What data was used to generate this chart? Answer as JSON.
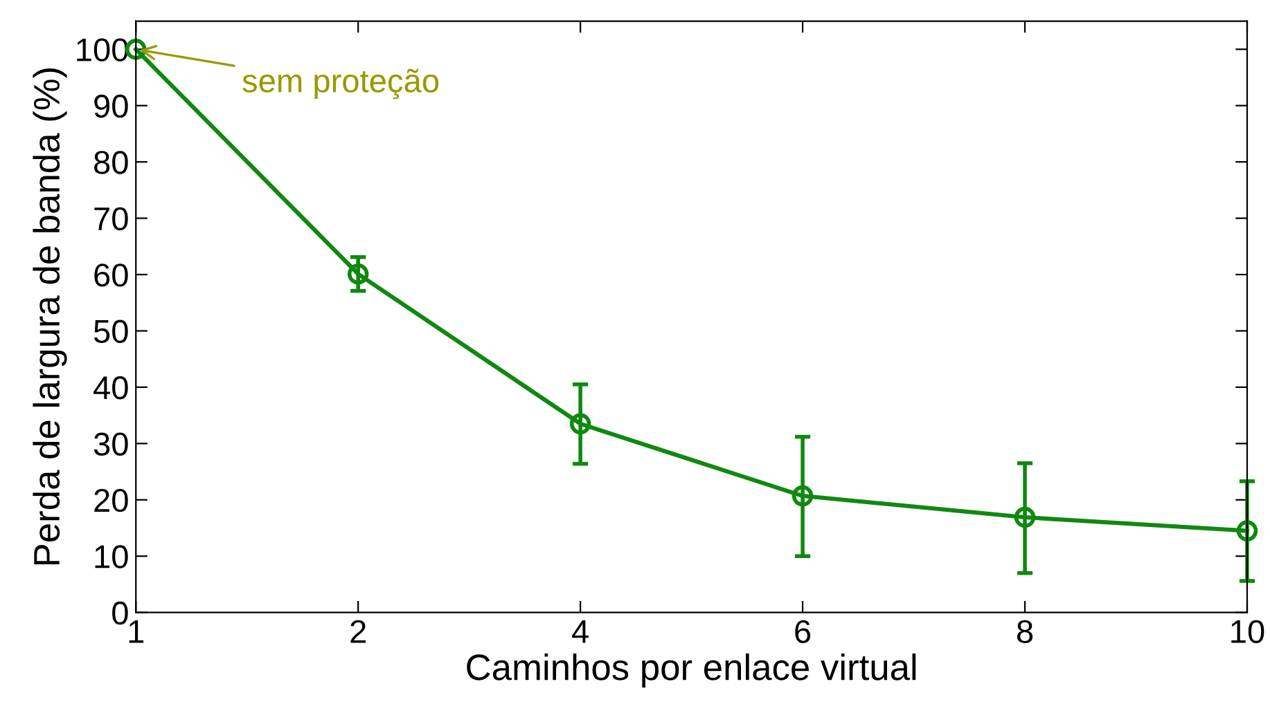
{
  "chart_data": {
    "type": "line",
    "xlabel": "Caminhos por enlace virtual",
    "ylabel": "Perda de largura de banda (%)",
    "categories": [
      "1",
      "2",
      "4",
      "6",
      "8",
      "10"
    ],
    "series": [
      {
        "color": "#118811",
        "values": [
          100,
          60.1,
          33.5,
          20.7,
          16.9,
          14.5
        ],
        "errors": [
          null,
          [
            57.1,
            63.1
          ],
          [
            26.4,
            40.5
          ],
          [
            10,
            31.2
          ],
          [
            7,
            26.5
          ],
          [
            5.6,
            23.3
          ]
        ]
      }
    ],
    "ylim": [
      0,
      105
    ],
    "yticks": [
      0,
      10,
      20,
      30,
      40,
      50,
      60,
      70,
      80,
      90,
      100
    ],
    "marker": "circle",
    "line_style": "solid",
    "grid": false,
    "legend": false,
    "annotations": [
      {
        "text": "sem proteção",
        "x": "1",
        "y": 100
      }
    ]
  }
}
